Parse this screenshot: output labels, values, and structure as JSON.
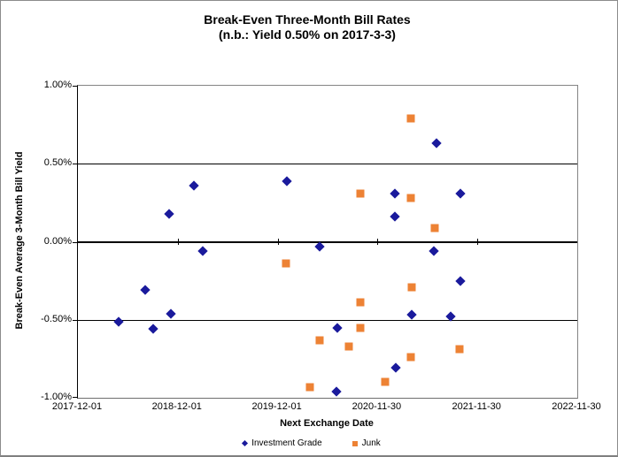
{
  "chart_data": {
    "type": "scatter",
    "title": "Break-Even Three-Month Bill Rates",
    "subtitle": "(n.b.: Yield 0.50% on 2017-3-3)",
    "xlabel": "Next Exchange Date",
    "ylabel": "Break-Even Average 3-Month Bill Yield",
    "x_axis": {
      "unit": "years after 2017-12-01",
      "range_years": [
        0,
        5
      ],
      "ticks": [
        {
          "label": "2017-12-01",
          "year": 0
        },
        {
          "label": "2018-12-01",
          "year": 1
        },
        {
          "label": "2019-12-01",
          "year": 2
        },
        {
          "label": "2020-11-30",
          "year": 3
        },
        {
          "label": "2021-11-30",
          "year": 4
        },
        {
          "label": "2022-11-30",
          "year": 5
        }
      ]
    },
    "y_axis": {
      "unit": "percent",
      "range": [
        -1.0,
        1.0
      ],
      "ticks": [
        {
          "label": "1.00%",
          "value": 1.0
        },
        {
          "label": "0.50%",
          "value": 0.5
        },
        {
          "label": "0.00%",
          "value": 0.0
        },
        {
          "label": "-0.50%",
          "value": -0.5
        },
        {
          "label": "-1.00%",
          "value": -1.0
        }
      ]
    },
    "grid": true,
    "legend_position": "bottom",
    "series": [
      {
        "name": "Investment Grade",
        "marker": "diamond",
        "color": "#1A1A9C",
        "points": [
          {
            "x": 0.41,
            "y": -0.51
          },
          {
            "x": 0.67,
            "y": -0.31
          },
          {
            "x": 0.75,
            "y": -0.56
          },
          {
            "x": 0.91,
            "y": 0.18
          },
          {
            "x": 0.93,
            "y": -0.46
          },
          {
            "x": 1.16,
            "y": 0.36
          },
          {
            "x": 1.25,
            "y": -0.06
          },
          {
            "x": 2.09,
            "y": 0.39
          },
          {
            "x": 2.42,
            "y": -0.03
          },
          {
            "x": 2.59,
            "y": -0.96
          },
          {
            "x": 2.6,
            "y": -0.55
          },
          {
            "x": 3.17,
            "y": 0.31
          },
          {
            "x": 3.17,
            "y": 0.16
          },
          {
            "x": 3.18,
            "y": -0.81
          },
          {
            "x": 3.34,
            "y": -0.47
          },
          {
            "x": 3.56,
            "y": -0.06
          },
          {
            "x": 3.59,
            "y": 0.63
          },
          {
            "x": 3.73,
            "y": -0.48
          },
          {
            "x": 3.83,
            "y": 0.31
          },
          {
            "x": 3.83,
            "y": -0.25
          }
        ]
      },
      {
        "name": "Junk",
        "marker": "square",
        "color": "#ED8234",
        "points": [
          {
            "x": 2.08,
            "y": -0.14
          },
          {
            "x": 2.32,
            "y": -0.93
          },
          {
            "x": 2.42,
            "y": -0.63
          },
          {
            "x": 2.71,
            "y": -0.67
          },
          {
            "x": 2.83,
            "y": 0.31
          },
          {
            "x": 2.83,
            "y": -0.39
          },
          {
            "x": 2.83,
            "y": -0.55
          },
          {
            "x": 3.08,
            "y": -0.9
          },
          {
            "x": 3.33,
            "y": 0.79
          },
          {
            "x": 3.33,
            "y": 0.28
          },
          {
            "x": 3.33,
            "y": -0.74
          },
          {
            "x": 3.34,
            "y": -0.29
          },
          {
            "x": 3.57,
            "y": 0.09
          },
          {
            "x": 3.82,
            "y": -0.69
          }
        ]
      }
    ],
    "style": {
      "gridline_color": "#000000",
      "plot_border_color": "#848484",
      "outer_border_color": "#8c8c8c",
      "background": "#ffffff"
    }
  }
}
